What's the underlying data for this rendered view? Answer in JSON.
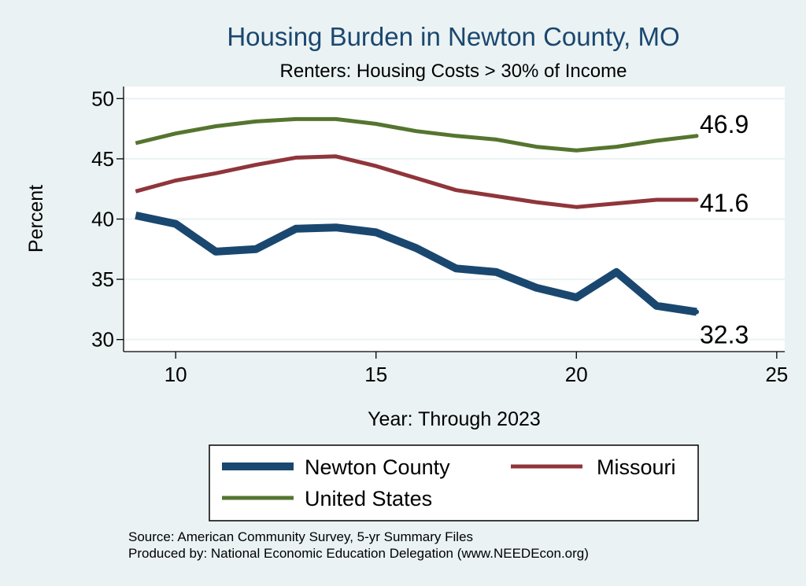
{
  "chart_data": {
    "type": "line",
    "title": "Housing Burden in Newton County, MO",
    "subtitle": "Renters: Housing Costs > 30% of Income",
    "xlabel": "Year: Through 2023",
    "ylabel": "Percent",
    "xlim": [
      8.7,
      25.2
    ],
    "ylim": [
      29,
      51
    ],
    "xticks": [
      "10",
      "15",
      "20",
      "25"
    ],
    "yticks": [
      "30",
      "35",
      "40",
      "45",
      "50"
    ],
    "grid": true,
    "x": [
      9,
      10,
      11,
      12,
      13,
      14,
      15,
      16,
      17,
      18,
      19,
      20,
      21,
      22,
      23
    ],
    "series": [
      {
        "name": "Newton County",
        "color": "#1A476F",
        "values": [
          40.3,
          39.6,
          37.3,
          37.5,
          39.2,
          39.3,
          38.9,
          37.6,
          35.9,
          35.6,
          34.3,
          33.5,
          35.6,
          32.8,
          32.3
        ],
        "end_label": "32.3"
      },
      {
        "name": "Missouri",
        "color": "#90353B",
        "values": [
          42.3,
          43.2,
          43.8,
          44.5,
          45.1,
          45.2,
          44.4,
          43.4,
          42.4,
          41.9,
          41.4,
          41.0,
          41.3,
          41.6,
          41.6
        ],
        "end_label": "41.6"
      },
      {
        "name": "United States",
        "color": "#55752F",
        "values": [
          46.3,
          47.1,
          47.7,
          48.1,
          48.3,
          48.3,
          47.9,
          47.3,
          46.9,
          46.6,
          46.0,
          45.7,
          46.0,
          46.5,
          46.9
        ],
        "end_label": "46.9"
      }
    ],
    "legend": {
      "position": "bottom",
      "entries": [
        "Newton County",
        "Missouri",
        "United States"
      ]
    },
    "notes": [
      "Source: American Community Survey, 5-yr Summary Files",
      "Produced by: National Economic Education Delegation (www.NEEDEcon.org)"
    ]
  }
}
